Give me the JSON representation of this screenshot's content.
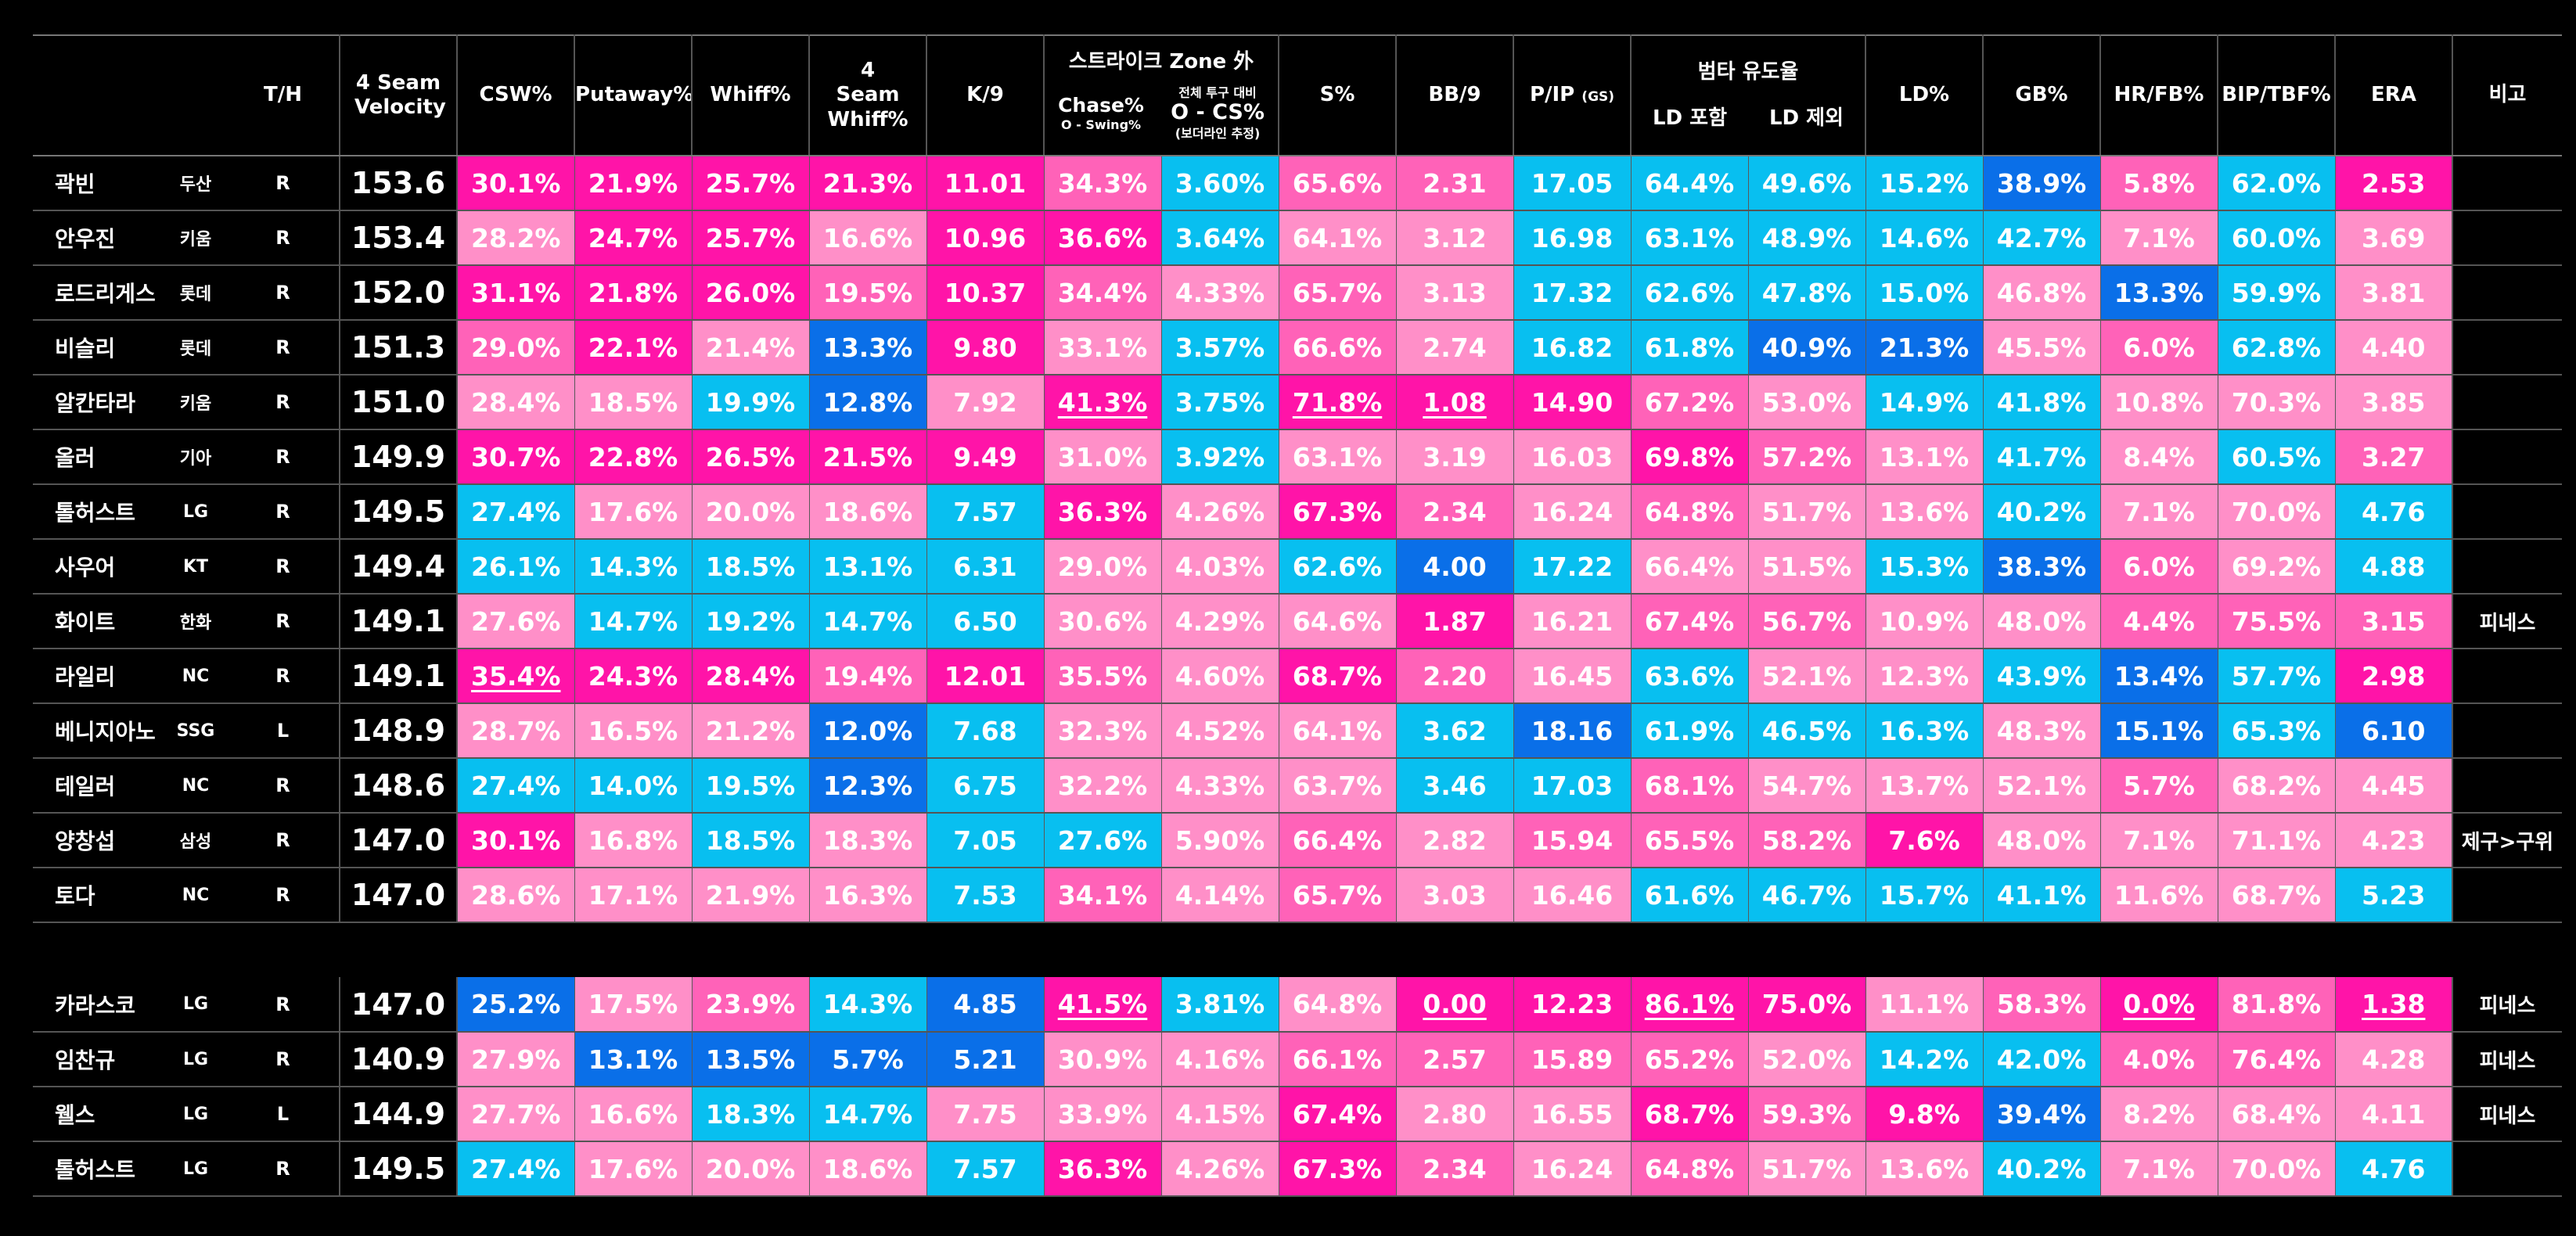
{
  "headers": {
    "th": "T/H",
    "velocity": "4 Seam Velocity",
    "csw": "CSW%",
    "putaway": "Putaway%",
    "whiff": "Whiff%",
    "fs_whiff": "4 Seam Whiff%",
    "k9": "K/9",
    "zone_group": "스트라이크 Zone 外",
    "chase_title": "Chase%",
    "chase_sub": "O - Swing%",
    "ocs_top": "전체 투구 대비",
    "ocs_title": "O - CS%",
    "ocs_sub": "(보더라인 추정)",
    "s_pct": "S%",
    "bb9": "BB/9",
    "pip": "P/IP",
    "pip_sub": "(GS)",
    "lob_group": "범타 유도율",
    "ld_in": "LD 포함",
    "ld_ex": "LD 제외",
    "ld": "LD%",
    "gb": "GB%",
    "hrfb": "HR/FB%",
    "bip": "BIP/TBF%",
    "era": "ERA",
    "note": "비고"
  },
  "colors": {
    "hot_pink": "#ff14a8",
    "mid_pink": "#ff62b8",
    "light_pink": "#ff8fc8",
    "cyan": "#08bff0",
    "sky": "#0f9bf0",
    "blue": "#0a6fe8"
  },
  "rows": [
    {
      "name": "곽빈",
      "team": "두산",
      "hand": "R",
      "velo": "153.6",
      "v": [
        [
          "30.1%",
          "H"
        ],
        [
          "21.9%",
          "H"
        ],
        [
          "25.7%",
          "H"
        ],
        [
          "21.3%",
          "H"
        ],
        [
          "11.01",
          "H"
        ],
        [
          "34.3%",
          "M"
        ],
        [
          "3.60%",
          "C"
        ],
        [
          "65.6%",
          "M"
        ],
        [
          "2.31",
          "M"
        ],
        [
          "17.05",
          "C"
        ],
        [
          "64.4%",
          "C"
        ],
        [
          "49.6%",
          "C"
        ],
        [
          "15.2%",
          "C"
        ],
        [
          "38.9%",
          "B"
        ],
        [
          "5.8%",
          "M"
        ],
        [
          "62.0%",
          "C"
        ],
        [
          "2.53",
          "H"
        ]
      ],
      "note": ""
    },
    {
      "name": "안우진",
      "team": "키움",
      "hand": "R",
      "velo": "153.4",
      "v": [
        [
          "28.2%",
          "L"
        ],
        [
          "24.7%",
          "H"
        ],
        [
          "25.7%",
          "H"
        ],
        [
          "16.6%",
          "L"
        ],
        [
          "10.96",
          "H"
        ],
        [
          "36.6%",
          "H"
        ],
        [
          "3.64%",
          "C"
        ],
        [
          "64.1%",
          "L"
        ],
        [
          "3.12",
          "L"
        ],
        [
          "16.98",
          "C"
        ],
        [
          "63.1%",
          "C"
        ],
        [
          "48.9%",
          "C"
        ],
        [
          "14.6%",
          "C"
        ],
        [
          "42.7%",
          "C"
        ],
        [
          "7.1%",
          "L"
        ],
        [
          "60.0%",
          "C"
        ],
        [
          "3.69",
          "L"
        ]
      ],
      "note": ""
    },
    {
      "name": "로드리게스",
      "team": "롯데",
      "hand": "R",
      "velo": "152.0",
      "v": [
        [
          "31.1%",
          "H"
        ],
        [
          "21.8%",
          "H"
        ],
        [
          "26.0%",
          "H"
        ],
        [
          "19.5%",
          "M"
        ],
        [
          "10.37",
          "H"
        ],
        [
          "34.4%",
          "M"
        ],
        [
          "4.33%",
          "L"
        ],
        [
          "65.7%",
          "M"
        ],
        [
          "3.13",
          "L"
        ],
        [
          "17.32",
          "C"
        ],
        [
          "62.6%",
          "C"
        ],
        [
          "47.8%",
          "C"
        ],
        [
          "15.0%",
          "C"
        ],
        [
          "46.8%",
          "L"
        ],
        [
          "13.3%",
          "B"
        ],
        [
          "59.9%",
          "C"
        ],
        [
          "3.81",
          "L"
        ]
      ],
      "note": ""
    },
    {
      "name": "비슬리",
      "team": "롯데",
      "hand": "R",
      "velo": "151.3",
      "v": [
        [
          "29.0%",
          "M"
        ],
        [
          "22.1%",
          "H"
        ],
        [
          "21.4%",
          "L"
        ],
        [
          "13.3%",
          "B"
        ],
        [
          "9.80",
          "H"
        ],
        [
          "33.1%",
          "L"
        ],
        [
          "3.57%",
          "C"
        ],
        [
          "66.6%",
          "M"
        ],
        [
          "2.74",
          "L"
        ],
        [
          "16.82",
          "C"
        ],
        [
          "61.8%",
          "C"
        ],
        [
          "40.9%",
          "B"
        ],
        [
          "21.3%",
          "B"
        ],
        [
          "45.5%",
          "L"
        ],
        [
          "6.0%",
          "M"
        ],
        [
          "62.8%",
          "C"
        ],
        [
          "4.40",
          "L"
        ]
      ],
      "note": ""
    },
    {
      "name": "알칸타라",
      "team": "키움",
      "hand": "R",
      "velo": "151.0",
      "v": [
        [
          "28.4%",
          "L"
        ],
        [
          "18.5%",
          "L"
        ],
        [
          "19.9%",
          "C"
        ],
        [
          "12.8%",
          "B"
        ],
        [
          "7.92",
          "L"
        ],
        [
          "41.3%",
          "HU"
        ],
        [
          "3.75%",
          "C"
        ],
        [
          "71.8%",
          "HU"
        ],
        [
          "1.08",
          "HU"
        ],
        [
          "14.90",
          "H"
        ],
        [
          "67.2%",
          "M"
        ],
        [
          "53.0%",
          "L"
        ],
        [
          "14.9%",
          "C"
        ],
        [
          "41.8%",
          "C"
        ],
        [
          "10.8%",
          "L"
        ],
        [
          "70.3%",
          "L"
        ],
        [
          "3.85",
          "L"
        ]
      ],
      "note": ""
    },
    {
      "name": "올러",
      "team": "기아",
      "hand": "R",
      "velo": "149.9",
      "v": [
        [
          "30.7%",
          "H"
        ],
        [
          "22.8%",
          "H"
        ],
        [
          "26.5%",
          "H"
        ],
        [
          "21.5%",
          "H"
        ],
        [
          "9.49",
          "H"
        ],
        [
          "31.0%",
          "L"
        ],
        [
          "3.92%",
          "C"
        ],
        [
          "63.1%",
          "L"
        ],
        [
          "3.19",
          "L"
        ],
        [
          "16.03",
          "L"
        ],
        [
          "69.8%",
          "H"
        ],
        [
          "57.2%",
          "M"
        ],
        [
          "13.1%",
          "L"
        ],
        [
          "41.7%",
          "C"
        ],
        [
          "8.4%",
          "L"
        ],
        [
          "60.5%",
          "C"
        ],
        [
          "3.27",
          "M"
        ]
      ],
      "note": ""
    },
    {
      "name": "톨허스트",
      "team": "LG",
      "hand": "R",
      "velo": "149.5",
      "v": [
        [
          "27.4%",
          "C"
        ],
        [
          "17.6%",
          "L"
        ],
        [
          "20.0%",
          "L"
        ],
        [
          "18.6%",
          "L"
        ],
        [
          "7.57",
          "C"
        ],
        [
          "36.3%",
          "H"
        ],
        [
          "4.26%",
          "L"
        ],
        [
          "67.3%",
          "H"
        ],
        [
          "2.34",
          "M"
        ],
        [
          "16.24",
          "L"
        ],
        [
          "64.8%",
          "M"
        ],
        [
          "51.7%",
          "L"
        ],
        [
          "13.6%",
          "L"
        ],
        [
          "40.2%",
          "C"
        ],
        [
          "7.1%",
          "L"
        ],
        [
          "70.0%",
          "L"
        ],
        [
          "4.76",
          "C"
        ]
      ],
      "note": ""
    },
    {
      "name": "사우어",
      "team": "KT",
      "hand": "R",
      "velo": "149.4",
      "v": [
        [
          "26.1%",
          "C"
        ],
        [
          "14.3%",
          "C"
        ],
        [
          "18.5%",
          "C"
        ],
        [
          "13.1%",
          "C"
        ],
        [
          "6.31",
          "C"
        ],
        [
          "29.0%",
          "L"
        ],
        [
          "4.03%",
          "L"
        ],
        [
          "62.6%",
          "C"
        ],
        [
          "4.00",
          "B"
        ],
        [
          "17.22",
          "C"
        ],
        [
          "66.4%",
          "L"
        ],
        [
          "51.5%",
          "L"
        ],
        [
          "15.3%",
          "C"
        ],
        [
          "38.3%",
          "B"
        ],
        [
          "6.0%",
          "M"
        ],
        [
          "69.2%",
          "L"
        ],
        [
          "4.88",
          "C"
        ]
      ],
      "note": ""
    },
    {
      "name": "화이트",
      "team": "한화",
      "hand": "R",
      "velo": "149.1",
      "v": [
        [
          "27.6%",
          "L"
        ],
        [
          "14.7%",
          "C"
        ],
        [
          "19.2%",
          "C"
        ],
        [
          "14.7%",
          "C"
        ],
        [
          "6.50",
          "C"
        ],
        [
          "30.6%",
          "L"
        ],
        [
          "4.29%",
          "L"
        ],
        [
          "64.6%",
          "L"
        ],
        [
          "1.87",
          "H"
        ],
        [
          "16.21",
          "L"
        ],
        [
          "67.4%",
          "M"
        ],
        [
          "56.7%",
          "M"
        ],
        [
          "10.9%",
          "L"
        ],
        [
          "48.0%",
          "L"
        ],
        [
          "4.4%",
          "M"
        ],
        [
          "75.5%",
          "M"
        ],
        [
          "3.15",
          "M"
        ]
      ],
      "note": "피네스"
    },
    {
      "name": "라일리",
      "team": "NC",
      "hand": "R",
      "velo": "149.1",
      "v": [
        [
          "35.4%",
          "HU"
        ],
        [
          "24.3%",
          "H"
        ],
        [
          "28.4%",
          "H"
        ],
        [
          "19.4%",
          "M"
        ],
        [
          "12.01",
          "H"
        ],
        [
          "35.5%",
          "M"
        ],
        [
          "4.60%",
          "L"
        ],
        [
          "68.7%",
          "H"
        ],
        [
          "2.20",
          "M"
        ],
        [
          "16.45",
          "L"
        ],
        [
          "63.6%",
          "C"
        ],
        [
          "52.1%",
          "L"
        ],
        [
          "12.3%",
          "L"
        ],
        [
          "43.9%",
          "C"
        ],
        [
          "13.4%",
          "B"
        ],
        [
          "57.7%",
          "C"
        ],
        [
          "2.98",
          "H"
        ]
      ],
      "note": ""
    },
    {
      "name": "베니지아노",
      "team": "SSG",
      "hand": "L",
      "velo": "148.9",
      "v": [
        [
          "28.7%",
          "L"
        ],
        [
          "16.5%",
          "L"
        ],
        [
          "21.2%",
          "L"
        ],
        [
          "12.0%",
          "B"
        ],
        [
          "7.68",
          "C"
        ],
        [
          "32.3%",
          "L"
        ],
        [
          "4.52%",
          "L"
        ],
        [
          "64.1%",
          "L"
        ],
        [
          "3.62",
          "C"
        ],
        [
          "18.16",
          "B"
        ],
        [
          "61.9%",
          "C"
        ],
        [
          "46.5%",
          "C"
        ],
        [
          "16.3%",
          "C"
        ],
        [
          "48.3%",
          "L"
        ],
        [
          "15.1%",
          "B"
        ],
        [
          "65.3%",
          "C"
        ],
        [
          "6.10",
          "B"
        ]
      ],
      "note": ""
    },
    {
      "name": "테일러",
      "team": "NC",
      "hand": "R",
      "velo": "148.6",
      "v": [
        [
          "27.4%",
          "C"
        ],
        [
          "14.0%",
          "C"
        ],
        [
          "19.5%",
          "C"
        ],
        [
          "12.3%",
          "B"
        ],
        [
          "6.75",
          "C"
        ],
        [
          "32.2%",
          "L"
        ],
        [
          "4.33%",
          "L"
        ],
        [
          "63.7%",
          "L"
        ],
        [
          "3.46",
          "C"
        ],
        [
          "17.03",
          "C"
        ],
        [
          "68.1%",
          "M"
        ],
        [
          "54.7%",
          "L"
        ],
        [
          "13.7%",
          "L"
        ],
        [
          "52.1%",
          "L"
        ],
        [
          "5.7%",
          "M"
        ],
        [
          "68.2%",
          "L"
        ],
        [
          "4.45",
          "L"
        ]
      ],
      "note": ""
    },
    {
      "name": "양창섭",
      "team": "삼성",
      "hand": "R",
      "velo": "147.0",
      "v": [
        [
          "30.1%",
          "H"
        ],
        [
          "16.8%",
          "L"
        ],
        [
          "18.5%",
          "C"
        ],
        [
          "18.3%",
          "L"
        ],
        [
          "7.05",
          "C"
        ],
        [
          "27.6%",
          "C"
        ],
        [
          "5.90%",
          "L"
        ],
        [
          "66.4%",
          "M"
        ],
        [
          "2.82",
          "L"
        ],
        [
          "15.94",
          "M"
        ],
        [
          "65.5%",
          "M"
        ],
        [
          "58.2%",
          "M"
        ],
        [
          "7.6%",
          "H"
        ],
        [
          "48.0%",
          "L"
        ],
        [
          "7.1%",
          "L"
        ],
        [
          "71.1%",
          "L"
        ],
        [
          "4.23",
          "L"
        ]
      ],
      "note": "제구>구위"
    },
    {
      "name": "토다",
      "team": "NC",
      "hand": "R",
      "velo": "147.0",
      "v": [
        [
          "28.6%",
          "L"
        ],
        [
          "17.1%",
          "L"
        ],
        [
          "21.9%",
          "L"
        ],
        [
          "16.3%",
          "L"
        ],
        [
          "7.53",
          "C"
        ],
        [
          "34.1%",
          "M"
        ],
        [
          "4.14%",
          "L"
        ],
        [
          "65.7%",
          "M"
        ],
        [
          "3.03",
          "L"
        ],
        [
          "16.46",
          "L"
        ],
        [
          "61.6%",
          "C"
        ],
        [
          "46.7%",
          "C"
        ],
        [
          "15.7%",
          "C"
        ],
        [
          "41.1%",
          "C"
        ],
        [
          "11.6%",
          "L"
        ],
        [
          "68.7%",
          "L"
        ],
        [
          "5.23",
          "C"
        ]
      ],
      "note": ""
    }
  ],
  "rows2": [
    {
      "name": "카라스코",
      "team": "LG",
      "hand": "R",
      "velo": "147.0",
      "v": [
        [
          "25.2%",
          "B"
        ],
        [
          "17.5%",
          "L"
        ],
        [
          "23.9%",
          "M"
        ],
        [
          "14.3%",
          "C"
        ],
        [
          "4.85",
          "B"
        ],
        [
          "41.5%",
          "HU"
        ],
        [
          "3.81%",
          "C"
        ],
        [
          "64.8%",
          "L"
        ],
        [
          "0.00",
          "HU"
        ],
        [
          "12.23",
          "H"
        ],
        [
          "86.1%",
          "HU"
        ],
        [
          "75.0%",
          "H"
        ],
        [
          "11.1%",
          "L"
        ],
        [
          "58.3%",
          "M"
        ],
        [
          "0.0%",
          "HU"
        ],
        [
          "81.8%",
          "M"
        ],
        [
          "1.38",
          "HU"
        ]
      ],
      "note": "피네스"
    },
    {
      "name": "임찬규",
      "team": "LG",
      "hand": "R",
      "velo": "140.9",
      "v": [
        [
          "27.9%",
          "L"
        ],
        [
          "13.1%",
          "B"
        ],
        [
          "13.5%",
          "B"
        ],
        [
          "5.7%",
          "B"
        ],
        [
          "5.21",
          "B"
        ],
        [
          "30.9%",
          "L"
        ],
        [
          "4.16%",
          "L"
        ],
        [
          "66.1%",
          "M"
        ],
        [
          "2.57",
          "M"
        ],
        [
          "15.89",
          "M"
        ],
        [
          "65.2%",
          "M"
        ],
        [
          "52.0%",
          "L"
        ],
        [
          "14.2%",
          "C"
        ],
        [
          "42.0%",
          "C"
        ],
        [
          "4.0%",
          "M"
        ],
        [
          "76.4%",
          "M"
        ],
        [
          "4.28",
          "L"
        ]
      ],
      "note": "피네스"
    },
    {
      "name": "웰스",
      "team": "LG",
      "hand": "L",
      "velo": "144.9",
      "v": [
        [
          "27.7%",
          "L"
        ],
        [
          "16.6%",
          "L"
        ],
        [
          "18.3%",
          "C"
        ],
        [
          "14.7%",
          "C"
        ],
        [
          "7.75",
          "L"
        ],
        [
          "33.9%",
          "L"
        ],
        [
          "4.15%",
          "L"
        ],
        [
          "67.4%",
          "H"
        ],
        [
          "2.80",
          "L"
        ],
        [
          "16.55",
          "L"
        ],
        [
          "68.7%",
          "H"
        ],
        [
          "59.3%",
          "M"
        ],
        [
          "9.8%",
          "H"
        ],
        [
          "39.4%",
          "B"
        ],
        [
          "8.2%",
          "L"
        ],
        [
          "68.4%",
          "L"
        ],
        [
          "4.11",
          "L"
        ]
      ],
      "note": "피네스"
    },
    {
      "name": "톨허스트",
      "team": "LG",
      "hand": "R",
      "velo": "149.5",
      "v": [
        [
          "27.4%",
          "C"
        ],
        [
          "17.6%",
          "L"
        ],
        [
          "20.0%",
          "L"
        ],
        [
          "18.6%",
          "L"
        ],
        [
          "7.57",
          "C"
        ],
        [
          "36.3%",
          "H"
        ],
        [
          "4.26%",
          "L"
        ],
        [
          "67.3%",
          "H"
        ],
        [
          "2.34",
          "M"
        ],
        [
          "16.24",
          "L"
        ],
        [
          "64.8%",
          "M"
        ],
        [
          "51.7%",
          "L"
        ],
        [
          "13.6%",
          "L"
        ],
        [
          "40.2%",
          "C"
        ],
        [
          "7.1%",
          "L"
        ],
        [
          "70.0%",
          "L"
        ],
        [
          "4.76",
          "C"
        ]
      ],
      "note": ""
    }
  ]
}
